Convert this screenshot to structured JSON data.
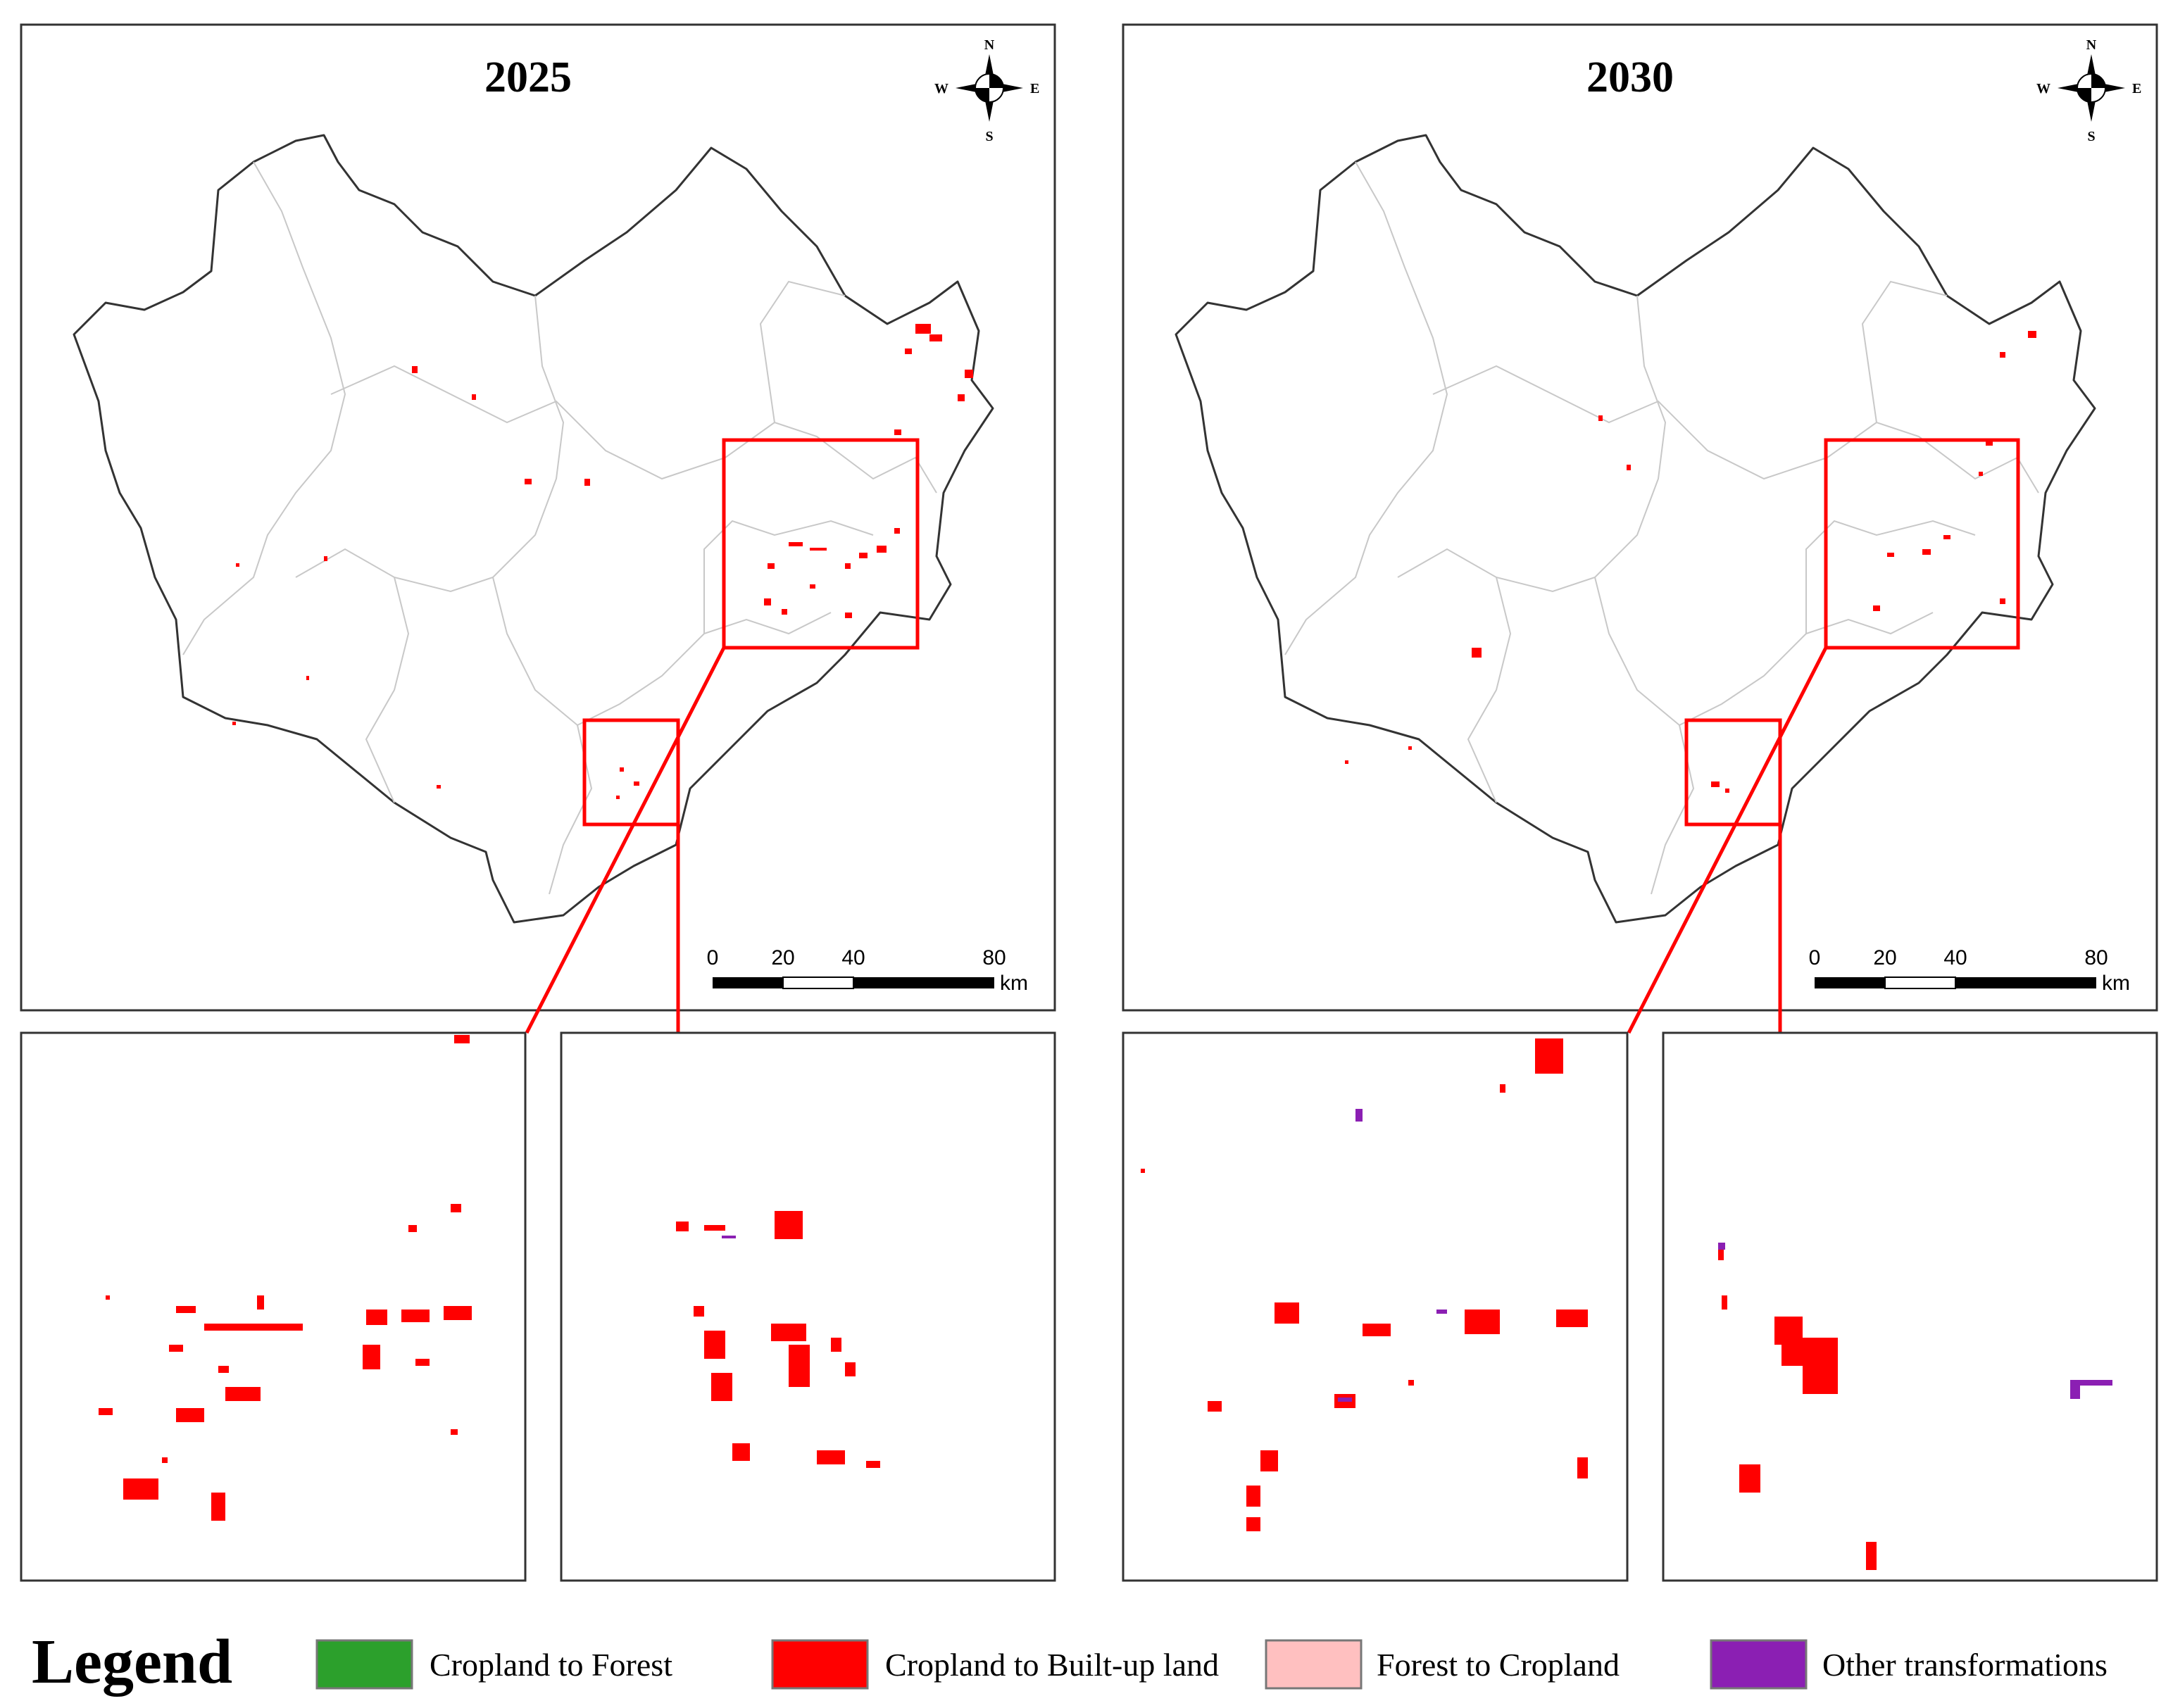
{
  "panels": [
    {
      "year": "2025",
      "compass": {
        "n": "N",
        "s": "S",
        "e": "E",
        "w": "W"
      },
      "scale": {
        "ticks": [
          "0",
          "20",
          "40",
          "80"
        ],
        "unit": "km"
      }
    },
    {
      "year": "2030",
      "compass": {
        "n": "N",
        "s": "S",
        "e": "E",
        "w": "W"
      },
      "scale": {
        "ticks": [
          "0",
          "20",
          "40",
          "80"
        ],
        "unit": "km"
      }
    }
  ],
  "legend": {
    "title": "Legend",
    "items": [
      {
        "label": "Cropland to Forest",
        "color": "#2ca02c"
      },
      {
        "label": "Cropland to Built-up land",
        "color": "#ff0000"
      },
      {
        "label": "Forest to Cropland",
        "color": "#ffc0c0"
      },
      {
        "label": "Other transformations",
        "color": "#8b1fb3"
      }
    ]
  }
}
